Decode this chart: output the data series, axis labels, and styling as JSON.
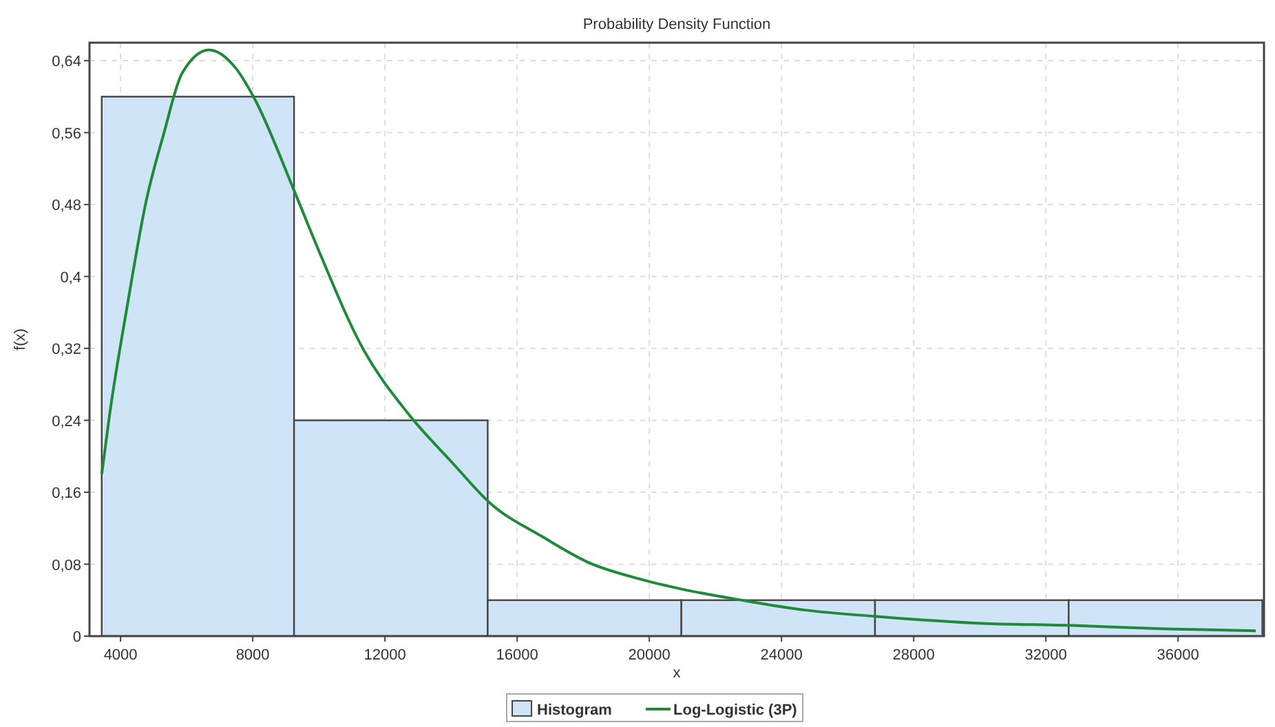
{
  "chart_data": {
    "type": "histogram",
    "title": "Probability Density Function",
    "xlabel": "x",
    "ylabel": "f(x)",
    "bins": [
      3430,
      9250,
      15110,
      20970,
      26830,
      32690,
      38550
    ],
    "series": [
      {
        "name": "Histogram",
        "color": "#cfe4f6",
        "values": [
          0.6,
          0.24,
          0.04,
          0.04,
          0.04,
          0.04
        ]
      },
      {
        "type": "line",
        "name": "Log-Logistic (3P)",
        "color": "#1f8a3a",
        "x": [
          3430,
          3675,
          4220,
          4770,
          5310,
          5860,
          6680,
          7500,
          8050,
          9280,
          9960,
          11330,
          12690,
          14060,
          15150,
          16790,
          18150,
          19660,
          21020,
          22800,
          24710,
          26830,
          30180,
          32700,
          35640,
          38350
        ],
        "values": [
          0.18,
          0.248,
          0.371,
          0.483,
          0.559,
          0.626,
          0.652,
          0.631,
          0.598,
          0.493,
          0.432,
          0.32,
          0.248,
          0.192,
          0.149,
          0.11,
          0.082,
          0.064,
          0.052,
          0.04,
          0.029,
          0.022,
          0.014,
          0.012,
          0.008,
          0.006
        ]
      }
    ],
    "xlim": [
      3060,
      38600
    ],
    "xticks": [
      4000,
      8000,
      12000,
      16000,
      20000,
      24000,
      28000,
      32000,
      36000
    ],
    "ylim": [
      0,
      0.66
    ],
    "yticks": [
      0,
      {
        "value": 0.08,
        "label": "0,08"
      },
      {
        "value": 0.16,
        "label": "0,16"
      },
      {
        "value": 0.24,
        "label": "0,24"
      },
      {
        "value": 0.32,
        "label": "0,32"
      },
      {
        "value": 0.4,
        "label": "0,4"
      },
      {
        "value": 0.48,
        "label": "0,48"
      },
      {
        "value": 0.56,
        "label": "0,56"
      },
      {
        "value": 0.64,
        "label": "0,64"
      }
    ],
    "grid": true,
    "legend": "bottom"
  }
}
